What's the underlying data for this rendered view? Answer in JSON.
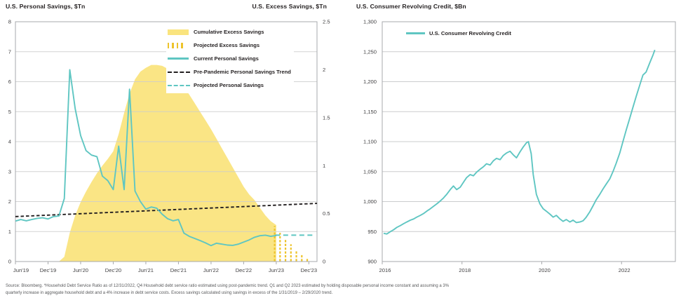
{
  "colors": {
    "excess_area": "#fae47e",
    "projected_bars": "#edc32b",
    "savings_line": "#5fc6c2",
    "trend_line": "#231f20",
    "grid": "#cbcccd",
    "border": "#a7a9ac",
    "axis_text": "#414042",
    "footnote_text": "#58595b"
  },
  "charts": {
    "left": {
      "title_left_axis": "U.S. Personal Savings, $Tn",
      "title_right_axis": "U.S. Excess Savings, $Tn",
      "legend": [
        {
          "label": "Cumulative Excess Savings",
          "swatch": "area"
        },
        {
          "label": "Projected Excess Savings",
          "swatch": "bars"
        },
        {
          "label": "Current Personal Savings",
          "swatch": "line"
        },
        {
          "label": "Pre-Pandemic Personal Savings Trend",
          "swatch": "dash-black"
        },
        {
          "label": "Projected Personal Savings",
          "swatch": "dash-teal"
        }
      ]
    },
    "right": {
      "title": "U.S. Consumer Revolving Credit, $Bn",
      "legend_label": "U.S. Consumer Revolving Credit"
    }
  },
  "footnote": "Source: Bloomberg. *Household Debt Service Ratio as of 12/31/2022, Q4 Household debt service ratio estimated using post-pandemic trend. Q1 and Q2 2023 estimated by holding disposable personal income constant and assuming a 3% quarterly increase in aggregate household debt and a 4% increase in debt service costs. Excess savings calculated using savings in excess of the 1/31/2019 – 2/29/2020 trend.",
  "chart_data": [
    {
      "type": "area",
      "title": "U.S. Personal Savings vs. Excess Savings",
      "x_unit": "months since Jun 2019",
      "x_tick_labels": [
        "Jun'19",
        "Dec'19",
        "Jun'20",
        "Dec'20",
        "Jun'21",
        "Dec'21",
        "Jun'22",
        "Dec'22",
        "Jun'23",
        "Dec'23"
      ],
      "x_tick_months": [
        0,
        6,
        12,
        18,
        24,
        30,
        36,
        42,
        48,
        54
      ],
      "x_range_months": [
        0,
        55.5
      ],
      "left_axis": {
        "label": "U.S. Personal Savings, $Tn",
        "range": [
          0,
          8
        ],
        "tick_step": 1
      },
      "right_axis": {
        "label": "U.S. Excess Savings, $Tn",
        "range": [
          0,
          2.5
        ],
        "tick_step": 0.5
      },
      "grid": true,
      "legend_position": "top-right-inside",
      "series": [
        {
          "name": "Cumulative Excess Savings",
          "type": "area",
          "axis": "right",
          "start_month": 8,
          "values": [
            0.0,
            0.05,
            0.3,
            0.48,
            0.62,
            0.73,
            0.83,
            0.92,
            1.0,
            1.07,
            1.15,
            1.33,
            1.55,
            1.75,
            1.9,
            1.98,
            2.02,
            2.05,
            2.05,
            2.04,
            2.01,
            1.97,
            1.9,
            1.82,
            1.74,
            1.65,
            1.56,
            1.47,
            1.38,
            1.28,
            1.18,
            1.08,
            0.98,
            0.88,
            0.78,
            0.7,
            0.64,
            0.56,
            0.48,
            0.42,
            0.38
          ]
        },
        {
          "name": "Projected Excess Savings",
          "type": "dashed-bars",
          "axis": "right",
          "start_month": 47.7,
          "step_months": 1,
          "values": [
            0.37,
            0.3,
            0.24,
            0.18,
            0.12,
            0.07,
            0.03
          ]
        },
        {
          "name": "Current Personal Savings",
          "type": "line",
          "axis": "left",
          "start_month": 0,
          "values": [
            1.35,
            1.4,
            1.36,
            1.4,
            1.44,
            1.46,
            1.42,
            1.5,
            1.52,
            2.1,
            6.4,
            5.1,
            4.2,
            3.7,
            3.55,
            3.5,
            2.85,
            2.7,
            2.4,
            3.85,
            2.4,
            5.75,
            2.35,
            2.0,
            1.75,
            1.82,
            1.78,
            1.58,
            1.43,
            1.36,
            1.4,
            0.95,
            0.84,
            0.77,
            0.7,
            0.62,
            0.53,
            0.61,
            0.58,
            0.55,
            0.54,
            0.58,
            0.65,
            0.72,
            0.81,
            0.86,
            0.88,
            0.84,
            0.87
          ]
        },
        {
          "name": "Pre-Pandemic Personal Savings Trend",
          "type": "dashed-line",
          "axis": "left",
          "points": [
            [
              0,
              1.5
            ],
            [
              55.5,
              1.94
            ]
          ]
        },
        {
          "name": "Projected Personal Savings",
          "type": "dashed-line",
          "axis": "left",
          "points": [
            [
              47.8,
              0.88
            ],
            [
              54.8,
              0.88
            ]
          ]
        }
      ]
    },
    {
      "type": "line",
      "title": "U.S. Consumer Revolving Credit, $Bn",
      "legend": [
        "U.S. Consumer Revolving Credit"
      ],
      "xlabel": "",
      "ylabel": "$Bn",
      "y_axis": {
        "range": [
          900,
          1300
        ],
        "tick_step": 50
      },
      "x_ticks": [
        2016,
        2018,
        2020,
        2022
      ],
      "x_range": [
        2016,
        2023.35
      ],
      "grid": true,
      "points": [
        [
          2016.0,
          947
        ],
        [
          2016.08,
          946
        ],
        [
          2016.17,
          950
        ],
        [
          2016.25,
          953
        ],
        [
          2016.33,
          957
        ],
        [
          2016.42,
          960
        ],
        [
          2016.5,
          963
        ],
        [
          2016.58,
          966
        ],
        [
          2016.67,
          969
        ],
        [
          2016.75,
          971
        ],
        [
          2016.83,
          974
        ],
        [
          2016.92,
          977
        ],
        [
          2017.0,
          980
        ],
        [
          2017.08,
          984
        ],
        [
          2017.17,
          988
        ],
        [
          2017.25,
          992
        ],
        [
          2017.33,
          996
        ],
        [
          2017.42,
          1001
        ],
        [
          2017.5,
          1006
        ],
        [
          2017.58,
          1012
        ],
        [
          2017.67,
          1020
        ],
        [
          2017.75,
          1026
        ],
        [
          2017.83,
          1020
        ],
        [
          2017.92,
          1024
        ],
        [
          2018.0,
          1032
        ],
        [
          2018.08,
          1040
        ],
        [
          2018.17,
          1045
        ],
        [
          2018.25,
          1043
        ],
        [
          2018.33,
          1049
        ],
        [
          2018.42,
          1054
        ],
        [
          2018.5,
          1058
        ],
        [
          2018.58,
          1063
        ],
        [
          2018.67,
          1061
        ],
        [
          2018.75,
          1068
        ],
        [
          2018.83,
          1072
        ],
        [
          2018.92,
          1070
        ],
        [
          2019.0,
          1077
        ],
        [
          2019.08,
          1081
        ],
        [
          2019.17,
          1084
        ],
        [
          2019.25,
          1078
        ],
        [
          2019.33,
          1073
        ],
        [
          2019.42,
          1083
        ],
        [
          2019.5,
          1091
        ],
        [
          2019.58,
          1098
        ],
        [
          2019.63,
          1100
        ],
        [
          2019.7,
          1080
        ],
        [
          2019.75,
          1045
        ],
        [
          2019.83,
          1012
        ],
        [
          2019.92,
          996
        ],
        [
          2020.0,
          988
        ],
        [
          2020.08,
          984
        ],
        [
          2020.17,
          979
        ],
        [
          2020.25,
          974
        ],
        [
          2020.33,
          977
        ],
        [
          2020.42,
          971
        ],
        [
          2020.5,
          967
        ],
        [
          2020.58,
          970
        ],
        [
          2020.67,
          966
        ],
        [
          2020.75,
          969
        ],
        [
          2020.83,
          965
        ],
        [
          2020.92,
          966
        ],
        [
          2021.0,
          968
        ],
        [
          2021.08,
          974
        ],
        [
          2021.17,
          983
        ],
        [
          2021.25,
          993
        ],
        [
          2021.33,
          1003
        ],
        [
          2021.42,
          1012
        ],
        [
          2021.5,
          1021
        ],
        [
          2021.58,
          1029
        ],
        [
          2021.67,
          1038
        ],
        [
          2021.75,
          1050
        ],
        [
          2021.83,
          1064
        ],
        [
          2021.92,
          1081
        ],
        [
          2022.0,
          1100
        ],
        [
          2022.08,
          1119
        ],
        [
          2022.17,
          1139
        ],
        [
          2022.25,
          1157
        ],
        [
          2022.33,
          1175
        ],
        [
          2022.42,
          1194
        ],
        [
          2022.5,
          1211
        ],
        [
          2022.58,
          1216
        ],
        [
          2022.67,
          1231
        ],
        [
          2022.75,
          1244
        ],
        [
          2022.8,
          1253
        ]
      ]
    }
  ]
}
